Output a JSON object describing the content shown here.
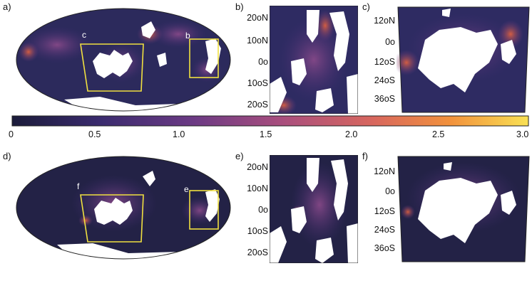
{
  "panels": {
    "a": {
      "label": "a)",
      "box_c": "c",
      "box_b": "b"
    },
    "b": {
      "label": "b)",
      "lat_labels": [
        "20oN",
        "10oN",
        "0o",
        "10oS",
        "20oS"
      ]
    },
    "c": {
      "label": "c)",
      "lat_labels": [
        "12oN",
        "0o",
        "12oS",
        "24oS",
        "36oS"
      ]
    },
    "d": {
      "label": "d)",
      "box_f": "f",
      "box_e": "e"
    },
    "e": {
      "label": "e)",
      "lat_labels": [
        "20oN",
        "10oN",
        "0o",
        "10oS",
        "20oS"
      ]
    },
    "f": {
      "label": "f)",
      "lat_labels": [
        "12oN",
        "0o",
        "12oS",
        "24oS",
        "36oS"
      ]
    }
  },
  "colorbar": {
    "ticks": [
      "0",
      "0.5",
      "1.0",
      "1.5",
      "2.0",
      "2.5",
      "3.0"
    ],
    "range": [
      0,
      3.0
    ],
    "colormap": [
      "#1b1b3a",
      "#3a2b6e",
      "#6b3a84",
      "#a84e7e",
      "#d8675e",
      "#f2923c",
      "#f9e154"
    ]
  },
  "colors": {
    "box": "#f0e040",
    "land": "#ffffff",
    "ocean_low": "#232246",
    "ocean_high": "#e4633e"
  }
}
